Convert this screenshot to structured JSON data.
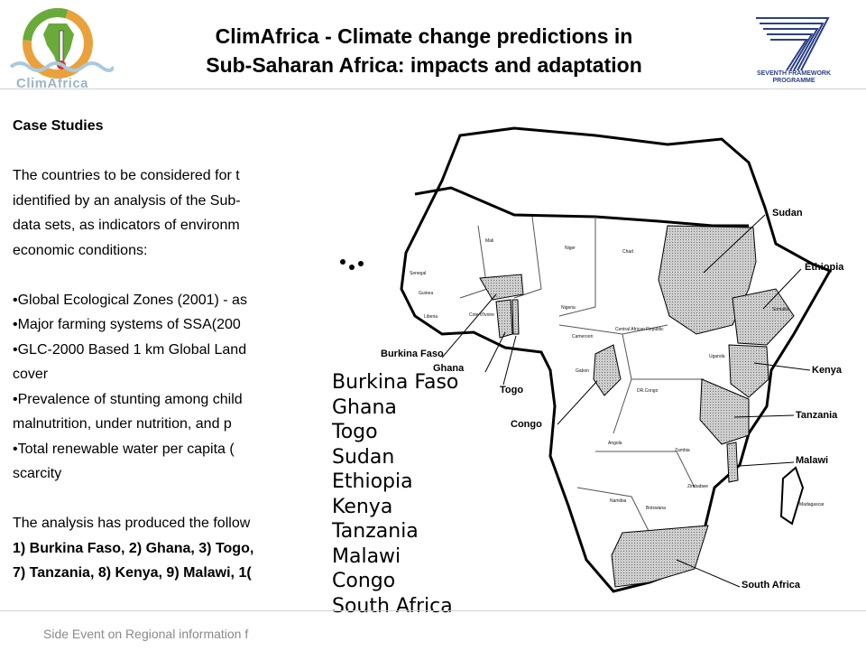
{
  "header": {
    "logo_left_text": "ClimAfrica",
    "title_line1": "ClimAfrica - Climate change predictions in",
    "title_line2": "Sub-Saharan Africa: impacts and adaptation",
    "logo_right_line1": "SEVENTH FRAMEWORK",
    "logo_right_line2": "PROGRAMME",
    "colors": {
      "ec_blue": "#2b3f87",
      "logo_orange": "#e9a23b",
      "logo_green": "#6aaa3a"
    }
  },
  "content": {
    "heading": "Case Studies",
    "intro_lines": [
      "The countries to be considered for t",
      "identified by an analysis of the Sub-",
      "data sets, as indicators of environm",
      "economic conditions:"
    ],
    "bullets": [
      "•Global Ecological Zones (2001) - as",
      "•Major farming systems of SSA(200",
      "•GLC-2000 Based 1 km Global Land",
      "cover",
      "•Prevalence of stunting among child",
      "malnutrition, under nutrition, and p",
      "•Total renewable water per capita (",
      "scarcity"
    ],
    "result_line": "The analysis has produced the follow",
    "result_bold_1": "1) Burkina Faso, 2) Ghana, 3) Togo,",
    "result_bold_2": "7) Tanzania, 8) Kenya, 9) Malawi, 1("
  },
  "map": {
    "labels": {
      "sudan": "Sudan",
      "ethiopia": "Ethiopia",
      "kenya": "Kenya",
      "tanzania": "Tanzania",
      "malawi": "Malawi",
      "south_africa": "South Africa",
      "burkina_faso": "Burkina Faso",
      "ghana": "Ghana",
      "togo": "Togo",
      "congo": "Congo"
    },
    "small_labels": {
      "mali": "Mali",
      "niger": "Niger",
      "chad": "Chad",
      "nigeria": "Nigeria",
      "car": "Central African Republic",
      "cameroon": "Cameroon",
      "gabon": "Gabon",
      "drcongo": "DR.Congo",
      "uganda": "Uganda",
      "somalia": "Somalia",
      "angola": "Angola",
      "zambia": "Zambia",
      "namibia": "Namibia",
      "botswana": "Botswana",
      "zimbabwe": "Zimbabwe",
      "madagascar": "Madagascar",
      "senegal": "Senegal",
      "guinea": "Guinea",
      "liberia": "Liberia",
      "cote": "Cote d'Ivoire"
    },
    "country_list": [
      "Burkina Faso",
      "Ghana",
      "Togo",
      "Sudan",
      "Ethiopia",
      "Kenya",
      "Tanzania",
      "Malawi",
      "Congo",
      "South Africa"
    ]
  },
  "footer": {
    "text": "Side Event on Regional information f"
  }
}
